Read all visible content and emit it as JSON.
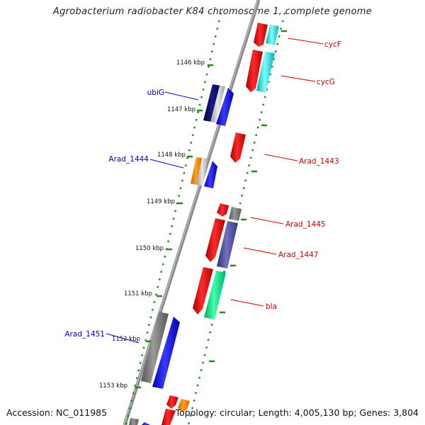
{
  "title": "Agrobacterium radiobacter K84 chromosome 1, complete genome",
  "footer": {
    "accession": "Accession: NC_011985",
    "summary": "Topology: circular; Length: 4,005,130 bp; Genes: 3,804"
  },
  "colors": {
    "backbone": "#8a8a8a",
    "tick_dots": "#1f8a1f",
    "forward_label": "#0000cc",
    "reverse_label": "#cc0000",
    "red": "#ee0000",
    "cyan": "#00e5e5",
    "blue": "#0000ee",
    "navy": "#000066",
    "gray": "#777777",
    "orange": "#ff8800",
    "purple": "#55559e",
    "green": "#00dd88"
  },
  "kbp_labels": [
    "1146 kbp",
    "1147 kbp",
    "1148 kbp",
    "1149 kbp",
    "1150 kbp",
    "1151 kbp",
    "1152 kbp",
    "1153 kbp"
  ],
  "gene_labels": [
    {
      "text": "cycF",
      "strand": "reverse"
    },
    {
      "text": "cycG",
      "strand": "reverse"
    },
    {
      "text": "ubiG",
      "strand": "forward"
    },
    {
      "text": "Arad_1443",
      "strand": "reverse"
    },
    {
      "text": "Arad_1444",
      "strand": "forward"
    },
    {
      "text": "Arad_1445",
      "strand": "reverse"
    },
    {
      "text": "Arad_1447",
      "strand": "reverse"
    },
    {
      "text": "bla",
      "strand": "reverse"
    },
    {
      "text": "Arad_1451",
      "strand": "forward"
    }
  ]
}
